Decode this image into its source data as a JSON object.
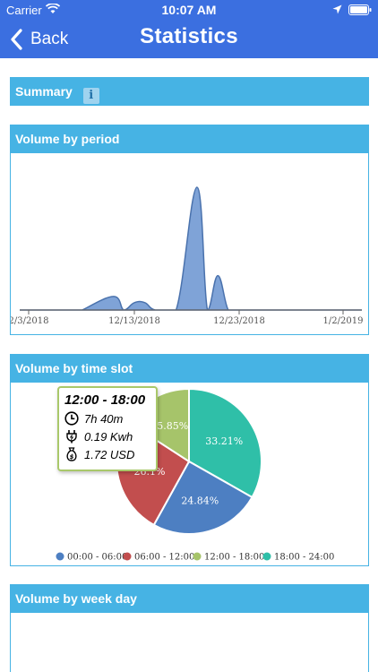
{
  "status_bar": {
    "carrier": "Carrier",
    "time": "10:07 AM"
  },
  "nav": {
    "back_label": "Back",
    "title": "Statistics"
  },
  "summary": {
    "label": "Summary",
    "info_icon": "i"
  },
  "panels": {
    "volume_by_period": "Volume by period",
    "volume_by_time_slot": "Volume by time slot",
    "volume_by_week_day": "Volume by week day"
  },
  "colors": {
    "nav": "#3b6fe0",
    "panel": "#46b3e4",
    "area": "#5f8ccd",
    "area_line": "#4a72ad"
  },
  "chart_data": [
    {
      "type": "area",
      "title": "Volume by period",
      "x_tick_labels": [
        "2/3/2018",
        "12/13/2018",
        "12/23/2018",
        "1/2/2019"
      ],
      "x": [
        "12/8/2018",
        "12/11/2018",
        "12/12/2018",
        "12/13/2018",
        "12/14/2018",
        "12/15/2018",
        "12/17/2018",
        "12/19/2018",
        "12/20/2018",
        "12/21/2018",
        "12/22/2018",
        "12/23/2018"
      ],
      "values": [
        0,
        0.11,
        0,
        0.06,
        0.06,
        0,
        0,
        1.0,
        0,
        0.28,
        0,
        0
      ],
      "grid": false
    },
    {
      "type": "pie",
      "title": "Volume by time slot",
      "legend_position": "bottom",
      "slices": [
        {
          "label": "00:00 - 06:00",
          "value": 24.84,
          "value_label": "24.84%",
          "color": "#4d7fc2"
        },
        {
          "label": "06:00 - 12:00",
          "value": 26.1,
          "value_label": "26.1%",
          "color": "#c24e4e"
        },
        {
          "label": "12:00 - 18:00",
          "value": 15.85,
          "value_label": "15.85%",
          "color": "#a6c46a"
        },
        {
          "label": "18:00 - 24:00",
          "value": 33.21,
          "value_label": "33.21%",
          "color": "#2fbfa8"
        }
      ],
      "tooltip": {
        "title": "12:00 - 18:00",
        "duration": "7h 40m",
        "energy": "0.19 Kwh",
        "cost": "1.72 USD"
      }
    }
  ]
}
